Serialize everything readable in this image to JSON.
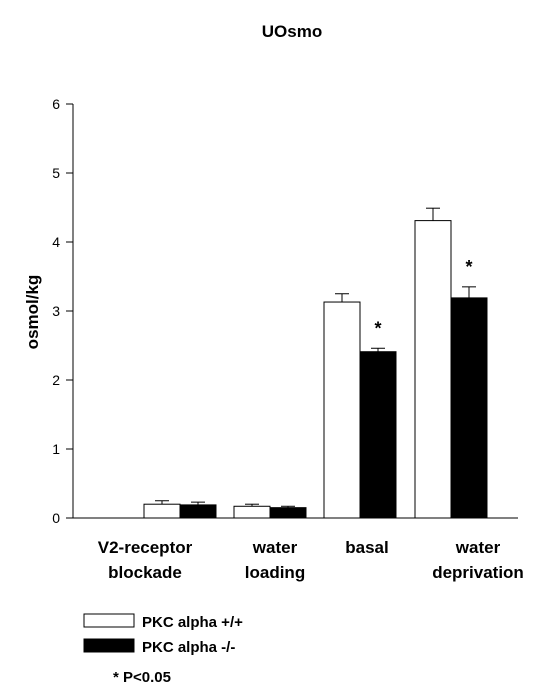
{
  "chart_data": {
    "type": "bar",
    "title": "UOsmo",
    "ylabel": "osmol/kg",
    "xlabel": "",
    "ylim": [
      0,
      6
    ],
    "yticks": [
      "0",
      "1",
      "2",
      "3",
      "4",
      "5",
      "6"
    ],
    "categories": [
      [
        "V2-receptor",
        "blockade"
      ],
      [
        "water",
        "loading"
      ],
      [
        "basal"
      ],
      [
        "water",
        "deprivation"
      ]
    ],
    "series": [
      {
        "name": "PKC alpha +/+",
        "fill": "#ffffff",
        "values": [
          0.2,
          0.17,
          3.13,
          4.31
        ],
        "errors": [
          0.05,
          0.03,
          0.12,
          0.18
        ]
      },
      {
        "name": "PKC alpha -/-",
        "fill": "#000000",
        "values": [
          0.19,
          0.15,
          2.41,
          3.19
        ],
        "errors": [
          0.04,
          0.02,
          0.05,
          0.16
        ]
      }
    ],
    "significance_marker": "*",
    "significant_categories": [
      2,
      3
    ],
    "note": "* P<0.05",
    "grid": false,
    "legend_position": "bottom-left"
  }
}
